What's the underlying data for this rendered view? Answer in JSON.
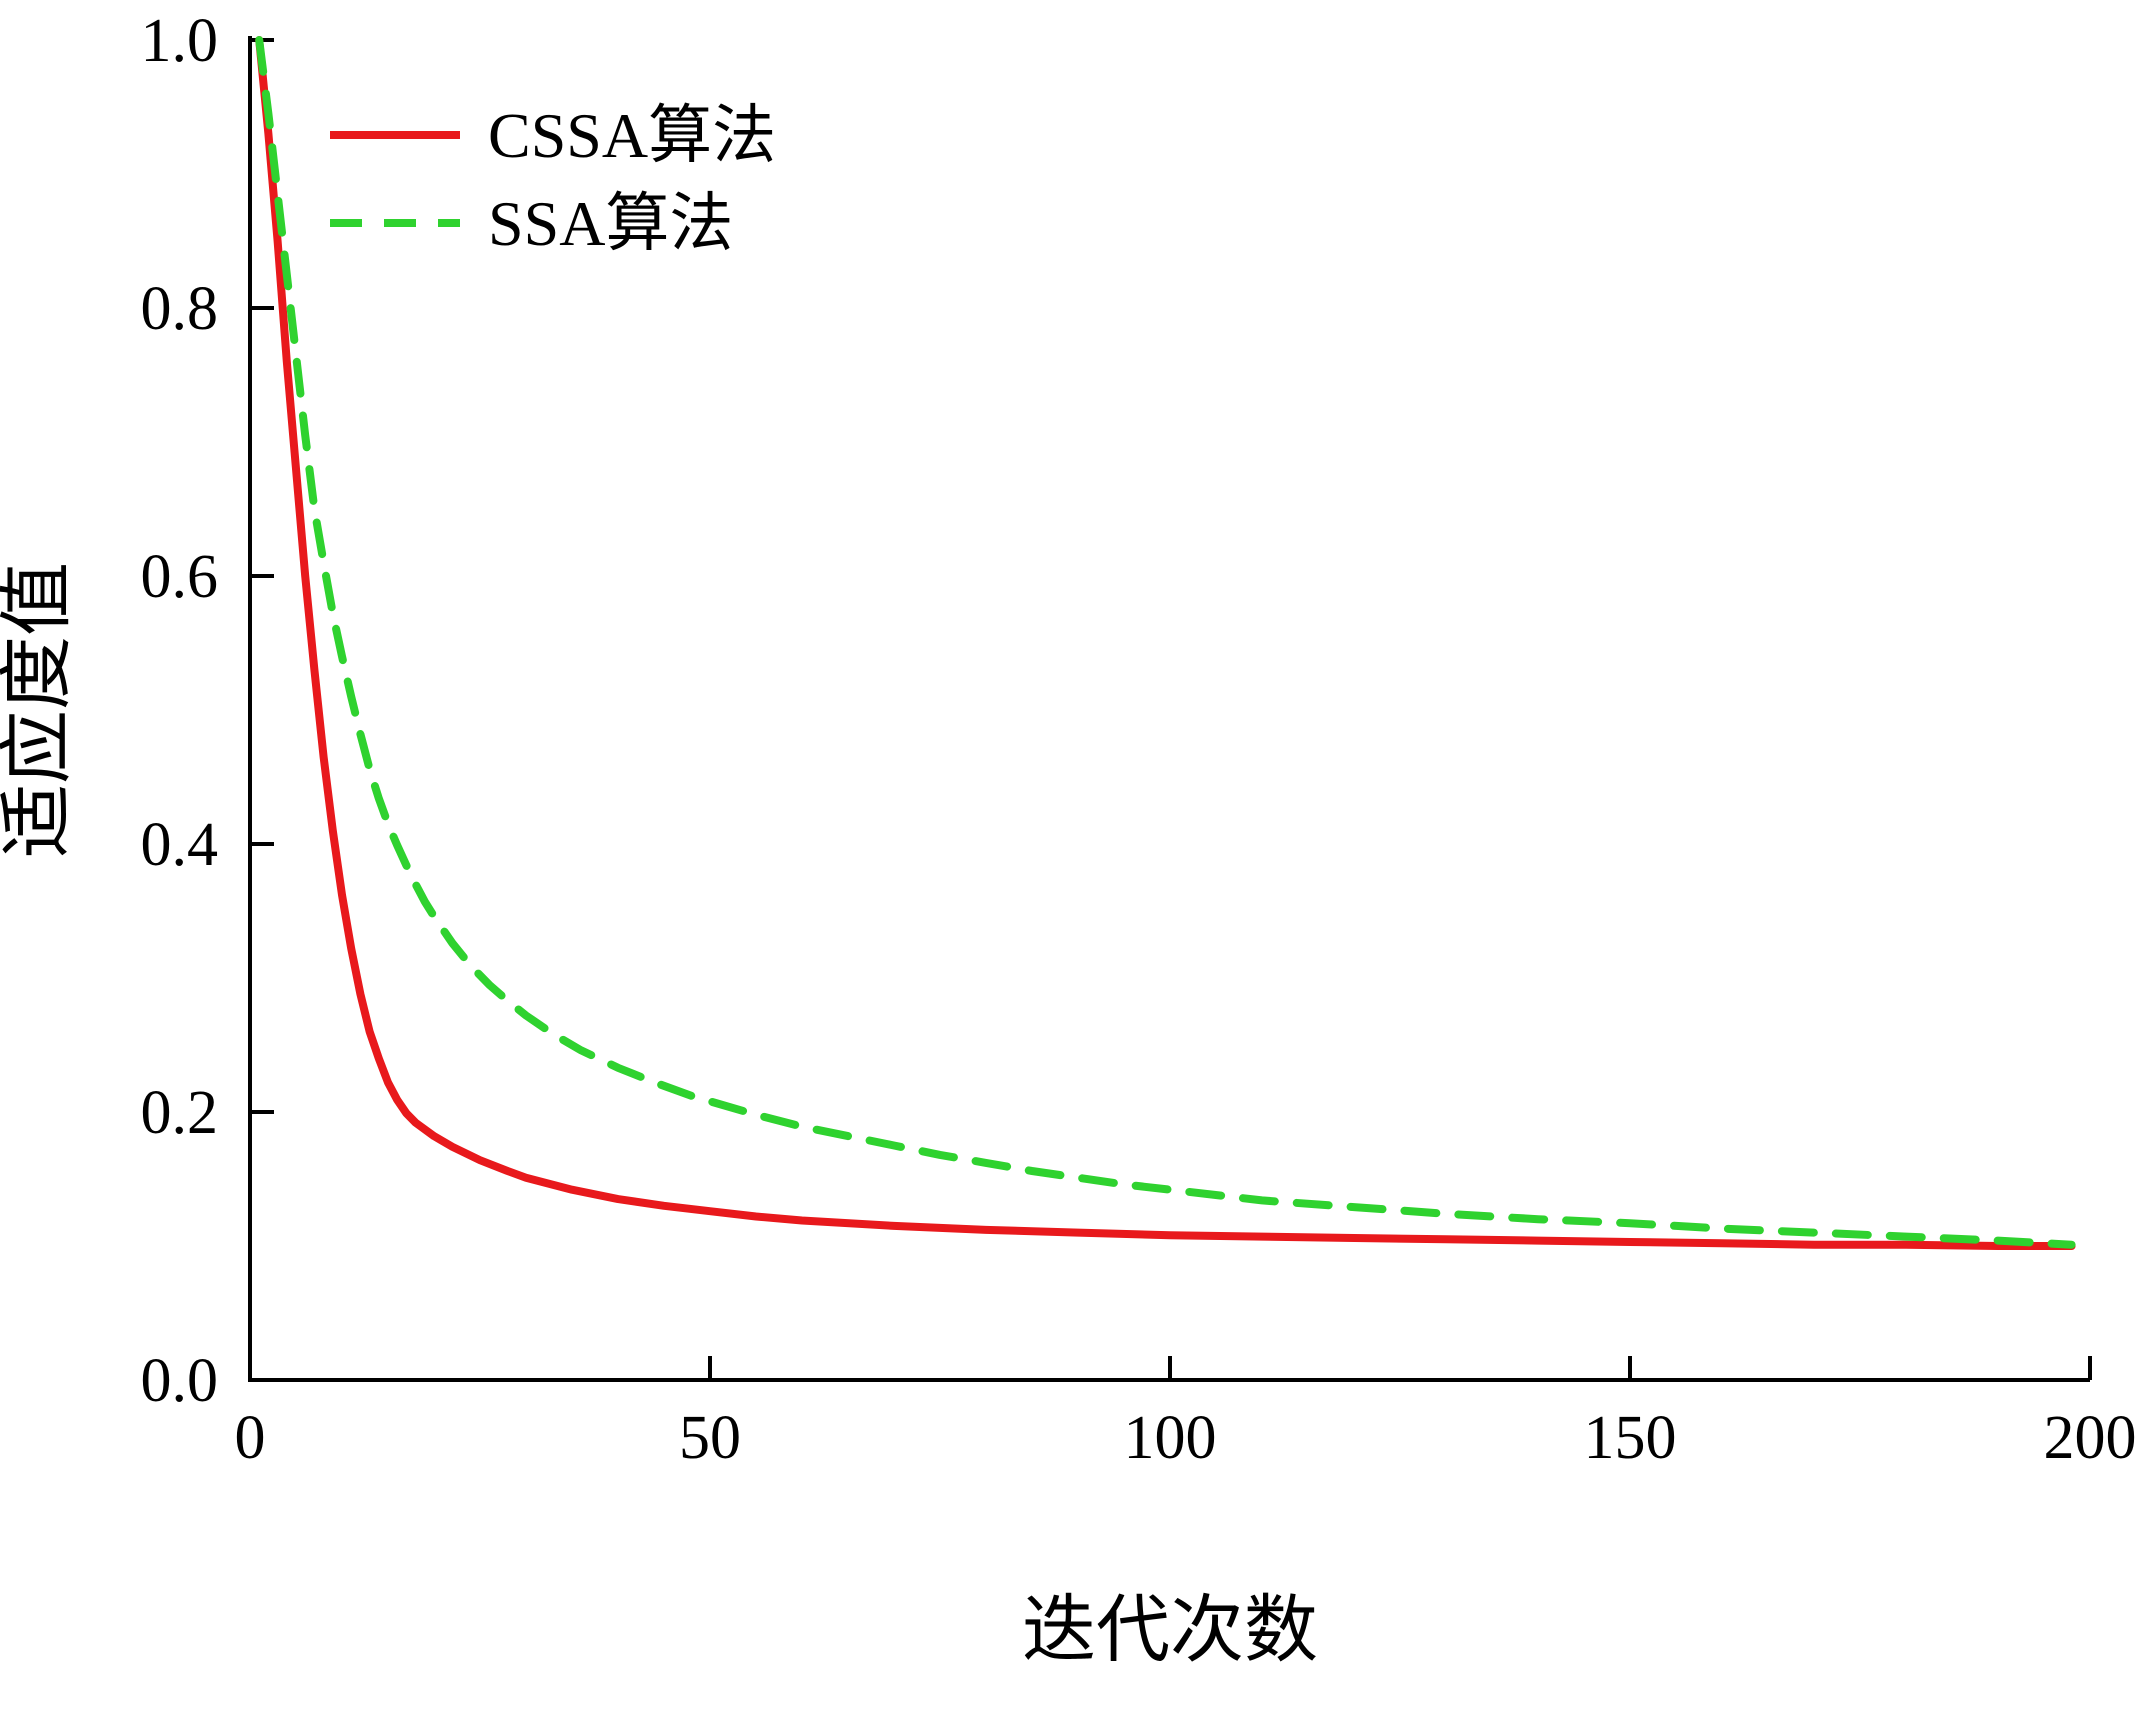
{
  "chart_data": {
    "type": "line",
    "title": "",
    "xlabel": "迭代次数",
    "ylabel": "适应度值",
    "xlim": [
      0,
      200
    ],
    "ylim": [
      0.0,
      1.0
    ],
    "xticks": [
      0,
      50,
      100,
      150,
      200
    ],
    "yticks": [
      "0.0",
      "0.2",
      "0.4",
      "0.6",
      "0.8",
      "1.0"
    ],
    "grid": false,
    "legend_position": "upper-left",
    "axis_color": "#000000",
    "series": [
      {
        "name": "CSSA算法",
        "color": "#e8191c",
        "style": "solid",
        "points": [
          [
            1,
            1.0
          ],
          [
            2,
            0.93
          ],
          [
            3,
            0.85
          ],
          [
            4,
            0.76
          ],
          [
            5,
            0.68
          ],
          [
            6,
            0.6
          ],
          [
            7,
            0.53
          ],
          [
            8,
            0.465
          ],
          [
            9,
            0.41
          ],
          [
            10,
            0.362
          ],
          [
            11,
            0.322
          ],
          [
            12,
            0.288
          ],
          [
            13,
            0.26
          ],
          [
            14,
            0.24
          ],
          [
            15,
            0.222
          ],
          [
            16,
            0.209
          ],
          [
            17,
            0.199
          ],
          [
            18,
            0.192
          ],
          [
            20,
            0.182
          ],
          [
            22,
            0.174
          ],
          [
            25,
            0.164
          ],
          [
            28,
            0.156
          ],
          [
            30,
            0.151
          ],
          [
            35,
            0.142
          ],
          [
            40,
            0.135
          ],
          [
            45,
            0.13
          ],
          [
            50,
            0.126
          ],
          [
            55,
            0.122
          ],
          [
            60,
            0.119
          ],
          [
            70,
            0.115
          ],
          [
            80,
            0.112
          ],
          [
            90,
            0.11
          ],
          [
            100,
            0.108
          ],
          [
            110,
            0.107
          ],
          [
            120,
            0.106
          ],
          [
            130,
            0.105
          ],
          [
            140,
            0.104
          ],
          [
            150,
            0.103
          ],
          [
            160,
            0.102
          ],
          [
            170,
            0.101
          ],
          [
            180,
            0.101
          ],
          [
            190,
            0.1
          ],
          [
            198,
            0.1
          ]
        ]
      },
      {
        "name": "SSA算法",
        "color": "#2fd22f",
        "style": "dashed",
        "points": [
          [
            1,
            1.0
          ],
          [
            2,
            0.945
          ],
          [
            3,
            0.885
          ],
          [
            4,
            0.825
          ],
          [
            5,
            0.765
          ],
          [
            6,
            0.705
          ],
          [
            7,
            0.65
          ],
          [
            8,
            0.61
          ],
          [
            9,
            0.572
          ],
          [
            10,
            0.54
          ],
          [
            11,
            0.51
          ],
          [
            12,
            0.482
          ],
          [
            13,
            0.456
          ],
          [
            14,
            0.434
          ],
          [
            15,
            0.415
          ],
          [
            16,
            0.399
          ],
          [
            17,
            0.384
          ],
          [
            18,
            0.37
          ],
          [
            19,
            0.357
          ],
          [
            20,
            0.346
          ],
          [
            22,
            0.326
          ],
          [
            24,
            0.309
          ],
          [
            26,
            0.295
          ],
          [
            28,
            0.283
          ],
          [
            30,
            0.272
          ],
          [
            33,
            0.258
          ],
          [
            36,
            0.246
          ],
          [
            40,
            0.233
          ],
          [
            44,
            0.222
          ],
          [
            48,
            0.212
          ],
          [
            50,
            0.208
          ],
          [
            55,
            0.198
          ],
          [
            60,
            0.189
          ],
          [
            65,
            0.182
          ],
          [
            70,
            0.175
          ],
          [
            75,
            0.168
          ],
          [
            80,
            0.162
          ],
          [
            85,
            0.156
          ],
          [
            90,
            0.151
          ],
          [
            95,
            0.146
          ],
          [
            100,
            0.142
          ],
          [
            110,
            0.134
          ],
          [
            120,
            0.129
          ],
          [
            130,
            0.124
          ],
          [
            140,
            0.12
          ],
          [
            150,
            0.117
          ],
          [
            160,
            0.113
          ],
          [
            170,
            0.11
          ],
          [
            180,
            0.107
          ],
          [
            190,
            0.104
          ],
          [
            198,
            0.101
          ]
        ]
      }
    ]
  }
}
